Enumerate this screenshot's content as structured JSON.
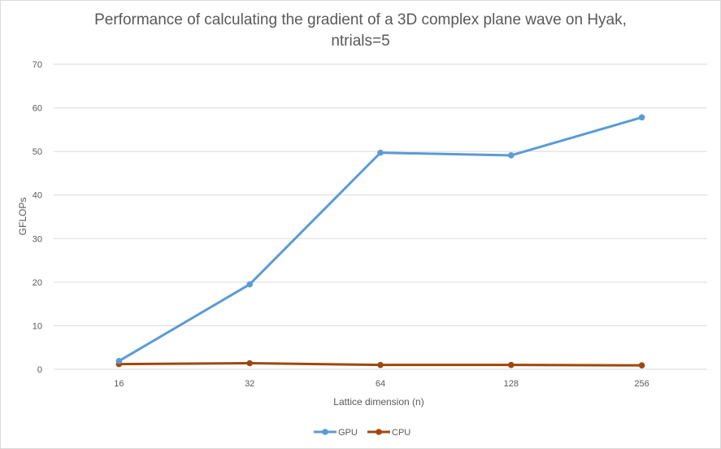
{
  "chart_data": {
    "type": "line",
    "title_lines": [
      "Performance of calculating the gradient of a 3D complex plane wave on Hyak,",
      "ntrials=5"
    ],
    "xlabel": "Lattice dimension (n)",
    "ylabel": "GFLOPs",
    "categories": [
      "16",
      "32",
      "64",
      "128",
      "256"
    ],
    "ylim": [
      0,
      70
    ],
    "yticks": [
      0,
      10,
      20,
      30,
      40,
      50,
      60,
      70
    ],
    "grid": true,
    "legend_position": "bottom",
    "series": [
      {
        "name": "GPU",
        "color": "#5b9bd5",
        "values": [
          1.9,
          19.5,
          49.7,
          49.1,
          57.8
        ]
      },
      {
        "name": "CPU",
        "color": "#9e480e",
        "values": [
          1.2,
          1.4,
          1.0,
          1.0,
          0.9
        ]
      }
    ]
  }
}
